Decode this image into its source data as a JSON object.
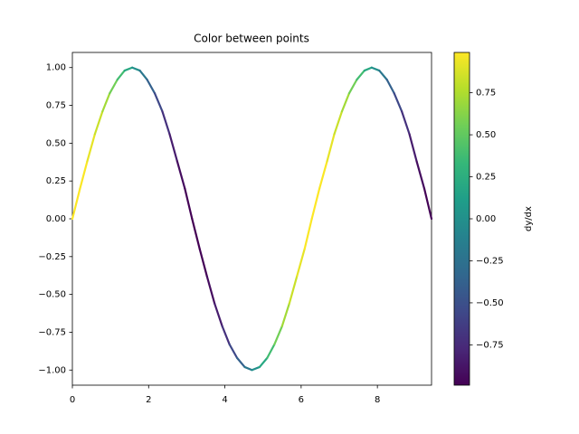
{
  "chart_data": {
    "type": "colored_line",
    "title": "Color between points",
    "x": [
      0,
      0.2,
      0.39,
      0.59,
      0.79,
      0.98,
      1.18,
      1.37,
      1.57,
      1.77,
      1.96,
      2.16,
      2.36,
      2.55,
      2.75,
      2.95,
      3.14,
      3.34,
      3.53,
      3.73,
      3.93,
      4.12,
      4.32,
      4.52,
      4.71,
      4.91,
      5.11,
      5.3,
      5.5,
      5.69,
      5.89,
      6.09,
      6.28,
      6.48,
      6.68,
      6.87,
      7.07,
      7.26,
      7.46,
      7.66,
      7.85,
      8.05,
      8.25,
      8.44,
      8.64,
      8.84,
      9.03,
      9.23,
      9.42
    ],
    "y": [
      0,
      0.2,
      0.38,
      0.56,
      0.71,
      0.83,
      0.92,
      0.98,
      1,
      0.98,
      0.92,
      0.83,
      0.71,
      0.56,
      0.38,
      0.2,
      0,
      -0.2,
      -0.38,
      -0.56,
      -0.71,
      -0.83,
      -0.92,
      -0.98,
      -1,
      -0.98,
      -0.92,
      -0.83,
      -0.71,
      -0.56,
      -0.38,
      -0.2,
      0,
      0.2,
      0.38,
      0.56,
      0.71,
      0.83,
      0.92,
      0.98,
      1,
      0.98,
      0.92,
      0.83,
      0.71,
      0.56,
      0.38,
      0.2,
      0
    ],
    "dydx": [
      1,
      0.98,
      0.92,
      0.83,
      0.71,
      0.56,
      0.38,
      0.2,
      0,
      -0.2,
      -0.38,
      -0.56,
      -0.71,
      -0.83,
      -0.92,
      -0.98,
      -1,
      -0.98,
      -0.92,
      -0.83,
      -0.71,
      -0.56,
      -0.38,
      -0.2,
      0,
      0.2,
      0.38,
      0.56,
      0.71,
      0.83,
      0.92,
      0.98,
      1,
      0.98,
      0.92,
      0.83,
      0.71,
      0.56,
      0.38,
      0.2,
      0,
      -0.2,
      -0.38,
      -0.56,
      -0.71,
      -0.83,
      -0.92,
      -0.98,
      -1
    ],
    "xlim": [
      0,
      9.42
    ],
    "ylim": [
      -1.1,
      1.1
    ],
    "xticks": [
      0,
      2,
      4,
      6,
      8
    ],
    "yticks": [
      {
        "value": 1,
        "label": "1.00"
      },
      0.75,
      {
        "value": 0.5,
        "label": "0.50"
      },
      0.25,
      {
        "value": 0,
        "label": "0.00"
      },
      {
        "value": -0.25,
        "label": "−0.25"
      },
      {
        "value": -0.5,
        "label": "−0.50"
      },
      {
        "value": -0.75,
        "label": "−0.75"
      },
      {
        "value": -1,
        "label": "−1.00"
      }
    ],
    "colorbar": {
      "label": "dy/dx",
      "clim": [
        -0.99,
        0.99
      ],
      "ticks": [
        0.75,
        {
          "value": 0.5,
          "label": "0.50"
        },
        0.25,
        {
          "value": 0,
          "label": "0.00"
        },
        {
          "value": -0.25,
          "label": "−0.25"
        },
        {
          "value": -0.5,
          "label": "−0.50"
        },
        {
          "value": -0.75,
          "label": "−0.75"
        }
      ],
      "colormap": [
        "#440154",
        "#482878",
        "#3e4989",
        "#31688e",
        "#26828e",
        "#1f9e89",
        "#35b779",
        "#6ece58",
        "#b5de2b",
        "#fde725"
      ]
    }
  }
}
